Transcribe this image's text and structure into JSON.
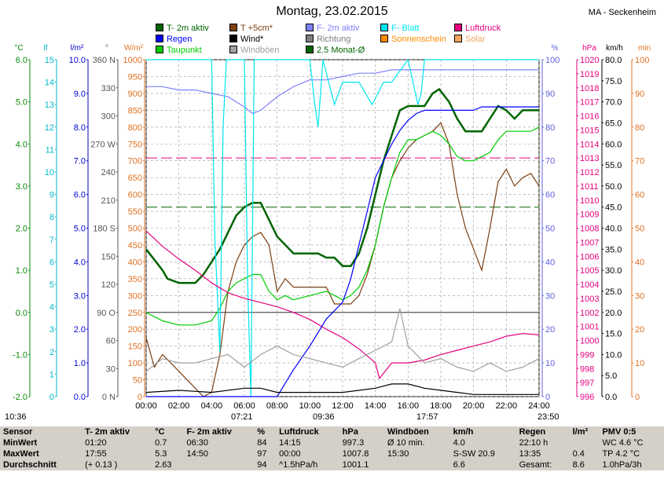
{
  "title": "Montag, 23.02.2015",
  "station": "MA - Seckenheim",
  "legend": [
    {
      "label": "T- 2m aktiv",
      "color": "#006400"
    },
    {
      "label": "T +5cm*",
      "color": "#7b3f12"
    },
    {
      "label": "F- 2m aktiv",
      "color": "#8080ff"
    },
    {
      "label": "F- Blatt",
      "color": "#00e5ee"
    },
    {
      "label": "Luftdruck",
      "color": "#e6007e"
    },
    {
      "label": "Regen",
      "color": "#0000ff"
    },
    {
      "label": "Wind*",
      "color": "#000000"
    },
    {
      "label": "Richtung",
      "color": "#808080"
    },
    {
      "label": "Sonnenschein",
      "color": "#ff8c00"
    },
    {
      "label": "Solar",
      "color": "#f4a460"
    },
    {
      "label": "Taupunkt",
      "color": "#00cc00"
    },
    {
      "label": "Windböen",
      "color": "#a0a0a0"
    },
    {
      "label": "2.5 Monat-Ø",
      "color": "#006400"
    }
  ],
  "axis_headers": {
    "temp": "°C",
    "leaf": "lf",
    "rain": "l/m²",
    "dir": "°",
    "solar": "W/m²",
    "hum": "%",
    "press": "hPa",
    "wind": "km/h",
    "min": "min"
  },
  "sun_times": {
    "sunrise": "07:21",
    "sunset": "17:57",
    "dawn": "09:36",
    "day_start": "10:36",
    "day_end": "23:50"
  },
  "stats": {
    "headers": [
      "Sensor",
      "T- 2m aktiv",
      "°C",
      "F- 2m aktiv",
      "%",
      "Luftdruck",
      "hPa",
      "Windböen",
      "km/h",
      "Regen",
      "l/m²",
      "PMV 0:5"
    ],
    "rows": [
      [
        "MinWert",
        "01:20",
        "0.7",
        "06:30",
        "84",
        "14:15",
        "997.3",
        "Ø 10 min.",
        "4.0",
        "22:10 h",
        "",
        "WC 4.6 °C"
      ],
      [
        "MaxWert",
        "17:55",
        "5.3",
        "14:50",
        "97",
        "00:00",
        "1007.8",
        "15:30",
        "S-SW 20.9",
        "13:35",
        "0.4",
        "TP 4.2 °C"
      ],
      [
        "Durchschnitt",
        "(+ 0.13 )",
        "2.63",
        "",
        "94",
        "^1.5hPa/h",
        "1001.1",
        "",
        "6.6",
        "Gesamt:",
        "8.6",
        "1.0hPa/3h"
      ]
    ]
  },
  "chart_data": {
    "type": "line",
    "x_ticks": [
      "00:00",
      "02:00",
      "04:00",
      "06:00",
      "08:00",
      "10:00",
      "12:00",
      "14:00",
      "16:00",
      "18:00",
      "20:00",
      "22:00",
      "24:00"
    ],
    "axes": {
      "temp_c": {
        "min": -2.0,
        "max": 6.0,
        "ticks": [
          "6.0",
          "5.0",
          "4.0",
          "3.0",
          "2.0",
          "1.0",
          "0.0",
          "-1.0",
          "-2.0"
        ]
      },
      "leaf": {
        "min": 0,
        "max": 15,
        "ticks": [
          "15",
          "14",
          "13",
          "12",
          "11",
          "10",
          "9",
          "8",
          "7",
          "6",
          "5",
          "4",
          "3",
          "2",
          "1",
          "0"
        ]
      },
      "rain_lm2": {
        "min": 0,
        "max": 10,
        "ticks": [
          "10.0",
          "9.0",
          "8.0",
          "7.0",
          "6.0",
          "5.0",
          "4.0",
          "3.0",
          "2.0",
          "1.0",
          "0.0"
        ]
      },
      "direction": {
        "ticks": [
          "360 N",
          "330",
          "300",
          "270 W",
          "240",
          "210",
          "180 S",
          "150",
          "120",
          "90 O",
          "60",
          "30",
          "0 N"
        ]
      },
      "solar_wm2": {
        "min": 0,
        "max": 1000,
        "ticks": [
          "1000",
          "950",
          "900",
          "850",
          "800",
          "750",
          "700",
          "650",
          "600",
          "550",
          "500",
          "450",
          "400",
          "350",
          "300",
          "250",
          "200",
          "150",
          "100",
          "50",
          "0"
        ]
      },
      "humidity_pct": {
        "min": 0,
        "max": 100,
        "ticks": [
          "100",
          "90",
          "80",
          "70",
          "60",
          "50",
          "40",
          "30",
          "20",
          "10",
          "0"
        ]
      },
      "pressure_hpa": {
        "min": 996,
        "max": 1020,
        "ticks": [
          "1020",
          "1019",
          "1018",
          "1017",
          "1016",
          "1015",
          "1014",
          "1013",
          "1012",
          "1011",
          "1010",
          "1009",
          "1008",
          "1007",
          "1006",
          "1005",
          "1004",
          "1003",
          "1002",
          "1001",
          "1000",
          "999",
          "998",
          "997",
          "996"
        ]
      },
      "wind_kmh": {
        "min": 0,
        "max": 80,
        "ticks": [
          "80.0",
          "75.0",
          "70.0",
          "65.0",
          "60.0",
          "55.0",
          "50.0",
          "45.0",
          "40.0",
          "35.0",
          "30.0",
          "25.0",
          "20.0",
          "15.0",
          "10.0",
          "5.0",
          "0.0"
        ]
      },
      "minutes": {
        "min": 0,
        "max": 100,
        "ticks": [
          "100",
          "90",
          "80",
          "70",
          "60",
          "50",
          "40",
          "30",
          "20",
          "10",
          "0"
        ]
      }
    },
    "series": [
      {
        "name": "T- 2m aktiv",
        "axis": "temp_c",
        "color": "#006400",
        "x": [
          0,
          1.0,
          1.3,
          2.0,
          3.0,
          3.5,
          4.0,
          4.5,
          5.0,
          5.5,
          6.0,
          6.5,
          7.0,
          7.5,
          8.0,
          8.5,
          9.0,
          9.5,
          10.0,
          10.5,
          11.0,
          11.5,
          12.0,
          12.5,
          13.0,
          13.5,
          14.0,
          14.5,
          15.0,
          15.5,
          16.0,
          16.5,
          17.0,
          17.5,
          17.9,
          18.5,
          19.0,
          19.5,
          20.0,
          20.5,
          21.0,
          21.5,
          22.0,
          22.5,
          23.0,
          23.5,
          24.0
        ],
        "y": [
          1.5,
          1.0,
          0.8,
          0.7,
          0.7,
          0.9,
          1.2,
          1.5,
          1.9,
          2.3,
          2.5,
          2.6,
          2.6,
          2.2,
          1.8,
          1.6,
          1.4,
          1.4,
          1.4,
          1.4,
          1.3,
          1.3,
          1.1,
          1.1,
          1.4,
          2.0,
          2.8,
          3.6,
          4.2,
          4.8,
          4.9,
          4.9,
          4.9,
          5.2,
          5.3,
          5.0,
          4.6,
          4.3,
          4.3,
          4.3,
          4.6,
          4.9,
          4.8,
          4.6,
          4.8,
          4.8,
          4.8
        ]
      },
      {
        "name": "T +5cm*",
        "axis": "temp_c",
        "color": "#7b3f12",
        "x": [
          0,
          0.5,
          1.0,
          2.0,
          3.0,
          3.5,
          4.0,
          4.5,
          5.0,
          5.5,
          6.0,
          6.5,
          7.0,
          7.5,
          8.0,
          8.5,
          9.0,
          10.0,
          11.0,
          11.5,
          12.0,
          12.5,
          13.0,
          13.5,
          14.0,
          14.5,
          15.0,
          15.5,
          16.0,
          16.5,
          17.0,
          17.5,
          18.0,
          18.5,
          19.0,
          19.5,
          20.0,
          20.5,
          21.0,
          21.5,
          22.0,
          22.5,
          23.0,
          23.5,
          24.0
        ],
        "y": [
          -0.6,
          -1.3,
          -1.0,
          -1.4,
          -1.8,
          -2.0,
          -1.9,
          -1.0,
          0.5,
          1.2,
          1.6,
          1.8,
          1.9,
          1.6,
          0.5,
          0.8,
          0.6,
          0.6,
          0.6,
          0.2,
          0.2,
          0.2,
          0.4,
          0.9,
          1.6,
          2.5,
          3.2,
          3.6,
          3.9,
          4.1,
          4.2,
          4.3,
          4.5,
          4.0,
          2.8,
          2.0,
          1.5,
          1.0,
          2.0,
          3.1,
          3.4,
          3.0,
          3.2,
          3.3,
          3.0
        ]
      },
      {
        "name": "Taupunkt",
        "axis": "temp_c",
        "color": "#00cc00",
        "x": [
          0,
          1.0,
          2.0,
          3.0,
          4.0,
          4.5,
          5.0,
          5.5,
          6.0,
          6.5,
          7.0,
          7.5,
          8.0,
          8.5,
          9.0,
          10.0,
          11.0,
          12.0,
          12.5,
          13.0,
          13.5,
          14.0,
          14.5,
          15.0,
          15.5,
          16.0,
          16.5,
          17.0,
          17.5,
          18.0,
          18.5,
          19.0,
          19.5,
          20.0,
          20.5,
          21.0,
          21.5,
          22.0,
          22.5,
          23.0,
          23.5,
          24.0
        ],
        "y": [
          0.0,
          -0.2,
          -0.3,
          -0.3,
          -0.2,
          0.1,
          0.5,
          0.7,
          0.8,
          0.9,
          0.9,
          0.5,
          0.3,
          0.4,
          0.3,
          0.4,
          0.5,
          0.3,
          0.4,
          0.6,
          1.0,
          1.6,
          2.5,
          3.2,
          3.8,
          4.1,
          4.1,
          4.2,
          4.3,
          4.2,
          4.0,
          3.7,
          3.6,
          3.6,
          3.7,
          3.8,
          4.1,
          4.3,
          4.3,
          4.3,
          4.3,
          4.4
        ]
      },
      {
        "name": "F- 2m aktiv",
        "axis": "humidity_pct",
        "color": "#8080ff",
        "x": [
          0,
          1.0,
          2.0,
          3.0,
          4.0,
          5.0,
          6.0,
          6.5,
          7.0,
          8.0,
          9.0,
          10.0,
          11.0,
          12.0,
          13.0,
          14.0,
          15.0,
          16.0,
          17.0,
          18.0,
          19.0,
          20.0,
          21.0,
          22.0,
          23.0,
          24.0
        ],
        "y": [
          92,
          92,
          91,
          91,
          90,
          89,
          86,
          84,
          85,
          89,
          92,
          94,
          94,
          95,
          96,
          96,
          97,
          97,
          97,
          97,
          97,
          97,
          97,
          97,
          97,
          97
        ]
      },
      {
        "name": "F- Blatt",
        "axis": "leaf",
        "color": "#00e5ee",
        "x": [
          0,
          3.5,
          3.8,
          4.0,
          4.2,
          4.5,
          4.7,
          4.9,
          5.5,
          6.0,
          6.2,
          6.4,
          6.6,
          7.0,
          8.0,
          10.0,
          10.3,
          10.5,
          10.8,
          11.5,
          12.0,
          13.0,
          13.8,
          14.5,
          15.0,
          16.0,
          16.6,
          16.8,
          17.0,
          18.0,
          19.0,
          20.0,
          22.0,
          24.0
        ],
        "y": [
          15,
          15,
          15,
          15,
          7,
          2,
          12,
          15,
          15,
          15,
          5,
          0,
          15,
          15,
          15,
          15,
          13,
          12,
          15,
          13,
          14,
          14,
          13,
          14,
          14,
          15,
          13,
          13.5,
          15,
          15,
          15,
          15,
          15,
          15
        ]
      },
      {
        "name": "Luftdruck",
        "axis": "pressure_hpa",
        "color": "#e6007e",
        "x": [
          0,
          1,
          2,
          3,
          4,
          5,
          6,
          7,
          8,
          9,
          10,
          11,
          12,
          13,
          14,
          14.25,
          15,
          16,
          17,
          18,
          19,
          20,
          21,
          22,
          23,
          24
        ],
        "y": [
          1007.8,
          1006.7,
          1005.8,
          1005.0,
          1004.1,
          1003.4,
          1003.0,
          1002.7,
          1002.4,
          1002.0,
          1001.5,
          1000.8,
          1000.2,
          999.4,
          998.4,
          997.3,
          998.4,
          998.4,
          998.6,
          999.0,
          999.3,
          999.6,
          999.9,
          1000.3,
          1000.5,
          1000.4
        ]
      },
      {
        "name": "Regen",
        "axis": "rain_lm2",
        "color": "#0000ff",
        "x": [
          0,
          8.0,
          9.0,
          10.0,
          11.0,
          12.0,
          12.5,
          13.0,
          13.5,
          14.0,
          14.5,
          15.0,
          15.5,
          16.0,
          16.5,
          17.0,
          18.0,
          19.0,
          20.0,
          20.5,
          21.0,
          22.0,
          24.0
        ],
        "y": [
          0,
          0,
          0.8,
          1.5,
          2.3,
          2.8,
          3.5,
          4.5,
          5.5,
          6.5,
          7.0,
          7.5,
          7.9,
          8.2,
          8.4,
          8.5,
          8.5,
          8.5,
          8.5,
          8.6,
          8.6,
          8.6,
          8.6
        ]
      },
      {
        "name": "Windböen",
        "axis": "wind_kmh",
        "color": "#a0a0a0",
        "x": [
          0,
          1,
          2,
          3,
          4,
          5,
          6,
          7,
          8,
          9,
          10,
          11,
          12,
          13,
          14,
          15,
          15.5,
          16,
          17,
          18,
          19,
          20,
          21,
          22,
          23,
          24
        ],
        "y": [
          6,
          9,
          8,
          8,
          9,
          10,
          7,
          10,
          12,
          10,
          9,
          8,
          7,
          9,
          11,
          13,
          20.9,
          12,
          8,
          9,
          7,
          6,
          8,
          6,
          7,
          9
        ]
      },
      {
        "name": "Wind*",
        "axis": "wind_kmh",
        "color": "#000000",
        "x": [
          0,
          2,
          4,
          6,
          7,
          8,
          10,
          12,
          13,
          14,
          15,
          16,
          17,
          18,
          19,
          20,
          22,
          24
        ],
        "y": [
          1,
          1.5,
          1,
          2,
          2,
          1,
          1,
          1,
          1.5,
          2,
          3,
          3,
          2,
          1.5,
          1,
          0.5,
          0.5,
          0.5
        ]
      }
    ],
    "reference_lines": [
      {
        "name": "2.5 Monat-Ø",
        "axis": "temp_c",
        "value": 2.5,
        "color": "#006400"
      },
      {
        "name": "Luftdruck Ø",
        "axis": "pressure_hpa",
        "value": 1013,
        "color": "#e6007e"
      }
    ]
  }
}
